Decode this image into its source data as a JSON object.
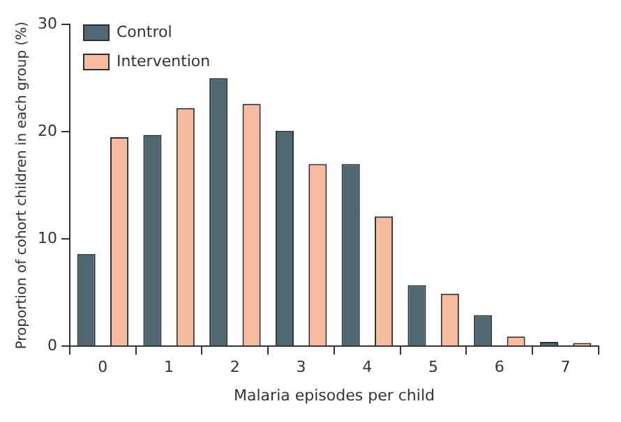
{
  "chart_data": {
    "type": "bar",
    "xlabel": "Malaria episodes per child",
    "ylabel": "Proportion of cohort children in each group (%)",
    "categories": [
      "0",
      "1",
      "2",
      "3",
      "4",
      "5",
      "6",
      "7"
    ],
    "series": [
      {
        "name": "Control",
        "color": "#4f6872",
        "values": [
          8.6,
          19.7,
          25.0,
          20.1,
          17.0,
          5.7,
          2.9,
          0.4
        ]
      },
      {
        "name": "Intervention",
        "color": "#f7bba0",
        "values": [
          19.5,
          22.2,
          22.6,
          17.0,
          12.1,
          4.9,
          0.9,
          0.3
        ]
      }
    ],
    "ylim": [
      0,
      30
    ],
    "yticks": [
      0,
      10,
      20,
      30
    ],
    "grid": false,
    "legend": "top left"
  }
}
